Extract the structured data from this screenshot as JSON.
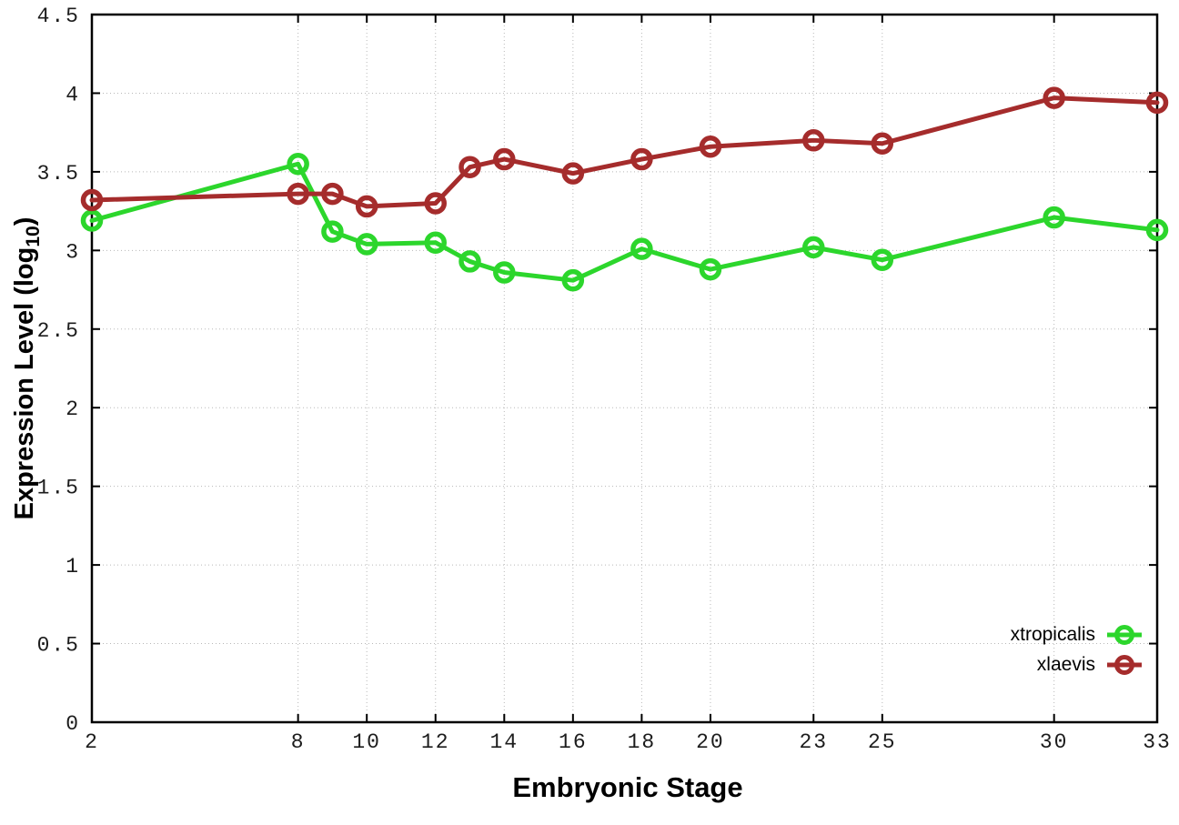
{
  "chart_data": {
    "type": "line",
    "title": "",
    "xlabel": "Embryonic Stage",
    "ylabel": "Expression Level (log10)",
    "ylabel_parts": {
      "pre": "Expression Level (log",
      "sub": "10",
      "post": ")"
    },
    "x": [
      2,
      8,
      9,
      10,
      12,
      13,
      14,
      16,
      18,
      20,
      23,
      25,
      30,
      33
    ],
    "series": [
      {
        "name": "xtropicalis",
        "color": "#2cd62c",
        "values": [
          3.19,
          3.55,
          3.12,
          3.04,
          3.05,
          2.93,
          2.86,
          2.81,
          3.01,
          2.88,
          3.02,
          2.94,
          3.21,
          3.13
        ]
      },
      {
        "name": "xlaevis",
        "color": "#a52c2c",
        "values": [
          3.32,
          3.36,
          3.36,
          3.28,
          3.3,
          3.53,
          3.58,
          3.49,
          3.58,
          3.66,
          3.7,
          3.68,
          3.97,
          3.94
        ]
      }
    ],
    "xlim": [
      2,
      33
    ],
    "ylim": [
      0,
      4.5
    ],
    "xticks": [
      {
        "value": 2,
        "label": "2"
      },
      {
        "value": 8,
        "label": "8"
      },
      {
        "value": 10,
        "label": "10"
      },
      {
        "value": 12,
        "label": "12"
      },
      {
        "value": 14,
        "label": "14"
      },
      {
        "value": 16,
        "label": "16"
      },
      {
        "value": 18,
        "label": "18"
      },
      {
        "value": 20,
        "label": "20"
      },
      {
        "value": 23,
        "label": "23"
      },
      {
        "value": 25,
        "label": "25"
      },
      {
        "value": 30,
        "label": "30"
      },
      {
        "value": 33,
        "label": "33"
      }
    ],
    "yticks": [
      {
        "value": 0,
        "label": "0"
      },
      {
        "value": 0.5,
        "label": "0.5"
      },
      {
        "value": 1,
        "label": "1"
      },
      {
        "value": 1.5,
        "label": "1.5"
      },
      {
        "value": 2,
        "label": "2"
      },
      {
        "value": 2.5,
        "label": "2.5"
      },
      {
        "value": 3,
        "label": "3"
      },
      {
        "value": 3.5,
        "label": "3.5"
      },
      {
        "value": 4,
        "label": "4"
      },
      {
        "value": 4.5,
        "label": "4.5"
      }
    ],
    "grid": true,
    "marker": "open-circle",
    "legend_position": "inside-bottom-right",
    "background_color": "#ffffff",
    "border_color": "#000000",
    "grid_color": "#b8b8b8"
  }
}
